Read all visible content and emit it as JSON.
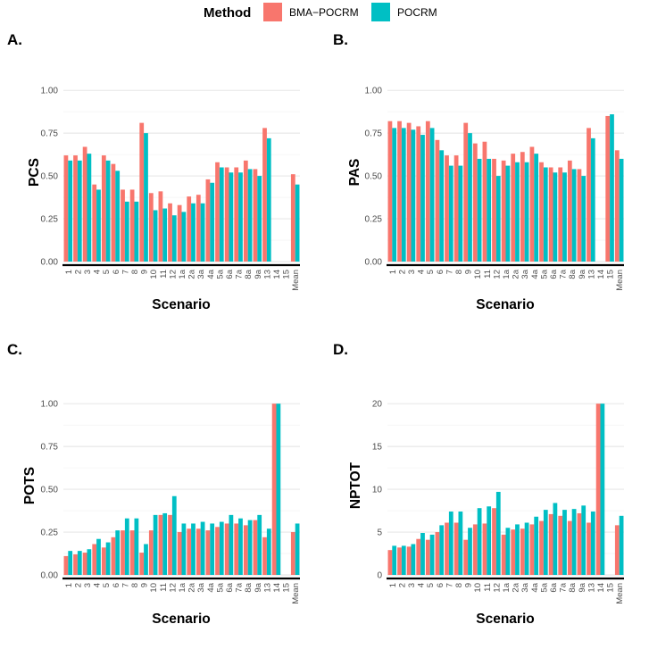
{
  "legend": {
    "title": "Method",
    "items": [
      {
        "label": "BMA−POCRM",
        "color": "#F8766D"
      },
      {
        "label": "POCRM",
        "color": "#00BFC4"
      }
    ]
  },
  "chart_data": [
    {
      "type": "bar",
      "panel_label": "A.",
      "xlabel": "Scenario",
      "ylabel": "PCS",
      "categories": [
        "1",
        "2",
        "3",
        "4",
        "5",
        "6",
        "7",
        "8",
        "9",
        "10",
        "11",
        "12",
        "1a",
        "2a",
        "3a",
        "4a",
        "5a",
        "6a",
        "7a",
        "8a",
        "9a",
        "13",
        "14",
        "15",
        "Mean"
      ],
      "ylim": [
        0,
        1.1
      ],
      "yticks": [
        0,
        0.25,
        0.5,
        0.75,
        1.0
      ],
      "ytick_labels": [
        "0.00",
        "0.25",
        "0.50",
        "0.75",
        "1.00"
      ],
      "series": [
        {
          "name": "BMA−POCRM",
          "values": [
            0.62,
            0.62,
            0.67,
            0.45,
            0.62,
            0.57,
            0.42,
            0.42,
            0.81,
            0.4,
            0.41,
            0.34,
            0.33,
            0.38,
            0.39,
            0.48,
            0.58,
            0.55,
            0.55,
            0.59,
            0.54,
            0.78,
            null,
            null,
            0.51
          ]
        },
        {
          "name": "POCRM",
          "values": [
            0.59,
            0.59,
            0.63,
            0.42,
            0.59,
            0.53,
            0.35,
            0.35,
            0.75,
            0.3,
            0.31,
            0.27,
            0.29,
            0.34,
            0.34,
            0.46,
            0.55,
            0.52,
            0.52,
            0.54,
            0.5,
            0.72,
            null,
            null,
            0.45
          ]
        }
      ]
    },
    {
      "type": "bar",
      "panel_label": "B.",
      "xlabel": "Scenario",
      "ylabel": "PAS",
      "categories": [
        "1",
        "2",
        "3",
        "4",
        "5",
        "6",
        "7",
        "8",
        "9",
        "10",
        "11",
        "12",
        "1a",
        "2a",
        "3a",
        "4a",
        "5a",
        "6a",
        "7a",
        "8a",
        "9a",
        "13",
        "14",
        "15",
        "Mean"
      ],
      "ylim": [
        0,
        1.1
      ],
      "yticks": [
        0,
        0.25,
        0.5,
        0.75,
        1.0
      ],
      "ytick_labels": [
        "0.00",
        "0.25",
        "0.50",
        "0.75",
        "1.00"
      ],
      "series": [
        {
          "name": "BMA−POCRM",
          "values": [
            0.82,
            0.82,
            0.81,
            0.79,
            0.82,
            0.71,
            0.62,
            0.62,
            0.81,
            0.69,
            0.7,
            0.6,
            0.59,
            0.63,
            0.64,
            0.67,
            0.58,
            0.55,
            0.55,
            0.59,
            0.54,
            0.78,
            null,
            0.85,
            0.65
          ]
        },
        {
          "name": "POCRM",
          "values": [
            0.78,
            0.78,
            0.77,
            0.74,
            0.78,
            0.65,
            0.56,
            0.56,
            0.75,
            0.6,
            0.6,
            0.5,
            0.56,
            0.58,
            0.58,
            0.63,
            0.55,
            0.52,
            0.52,
            0.54,
            0.5,
            0.72,
            null,
            0.86,
            0.6
          ]
        }
      ]
    },
    {
      "type": "bar",
      "panel_label": "C.",
      "xlabel": "Scenario",
      "ylabel": "POTS",
      "categories": [
        "1",
        "2",
        "3",
        "4",
        "5",
        "6",
        "7",
        "8",
        "9",
        "10",
        "11",
        "12",
        "1a",
        "2a",
        "3a",
        "4a",
        "5a",
        "6a",
        "7a",
        "8a",
        "9a",
        "13",
        "14",
        "15",
        "Mean"
      ],
      "ylim": [
        0,
        1.1
      ],
      "yticks": [
        0,
        0.25,
        0.5,
        0.75,
        1.0
      ],
      "ytick_labels": [
        "0.00",
        "0.25",
        "0.50",
        "0.75",
        "1.00"
      ],
      "series": [
        {
          "name": "BMA−POCRM",
          "values": [
            0.11,
            0.12,
            0.13,
            0.18,
            0.16,
            0.22,
            0.26,
            0.26,
            0.13,
            0.26,
            0.35,
            0.35,
            0.25,
            0.27,
            0.27,
            0.26,
            0.28,
            0.3,
            0.3,
            0.29,
            0.32,
            0.22,
            1.0,
            null,
            0.25
          ]
        },
        {
          "name": "POCRM",
          "values": [
            0.14,
            0.14,
            0.15,
            0.21,
            0.19,
            0.26,
            0.33,
            0.33,
            0.18,
            0.35,
            0.36,
            0.46,
            0.3,
            0.3,
            0.31,
            0.3,
            0.31,
            0.35,
            0.33,
            0.32,
            0.35,
            0.27,
            1.0,
            null,
            0.3
          ]
        }
      ]
    },
    {
      "type": "bar",
      "panel_label": "D.",
      "xlabel": "Scenario",
      "ylabel": "NPTOT",
      "categories": [
        "1",
        "2",
        "3",
        "4",
        "5",
        "6",
        "7",
        "8",
        "9",
        "10",
        "11",
        "12",
        "1a",
        "2a",
        "3a",
        "4a",
        "5a",
        "6a",
        "7a",
        "8a",
        "9a",
        "13",
        "14",
        "15",
        "Mean"
      ],
      "ylim": [
        0,
        22
      ],
      "yticks": [
        0,
        5,
        10,
        15,
        20
      ],
      "ytick_labels": [
        "0",
        "5",
        "10",
        "15",
        "20"
      ],
      "series": [
        {
          "name": "BMA−POCRM",
          "values": [
            2.9,
            3.2,
            3.3,
            4.2,
            4.1,
            5.0,
            6.1,
            6.1,
            4.1,
            5.9,
            6.0,
            7.8,
            4.7,
            5.3,
            5.4,
            5.9,
            6.3,
            7.1,
            6.9,
            6.3,
            7.2,
            6.1,
            20.0,
            null,
            5.8
          ]
        },
        {
          "name": "POCRM",
          "values": [
            3.4,
            3.4,
            3.6,
            4.9,
            4.7,
            5.8,
            7.4,
            7.4,
            5.5,
            7.8,
            8.0,
            9.7,
            5.5,
            5.9,
            6.1,
            6.8,
            7.6,
            8.4,
            7.6,
            7.7,
            8.1,
            7.4,
            20.0,
            null,
            6.9
          ]
        }
      ]
    }
  ]
}
